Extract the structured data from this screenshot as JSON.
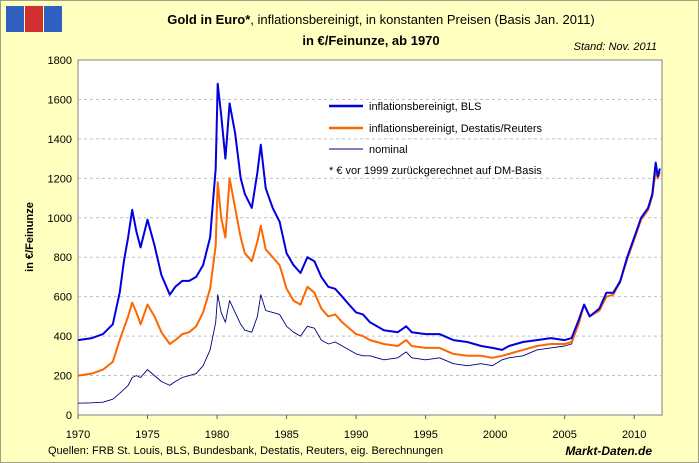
{
  "chart_data": {
    "type": "line",
    "title_bold": "Gold in Euro*",
    "title_rest": ", inflationsbereinigt, in konstanten Preisen (Basis Jan. 2011)",
    "subtitle": "in €/Feinunze, ab 1970",
    "stand": "Stand: Nov. 2011",
    "ylabel": "in €/Feinunze",
    "source": "Quellen: FRB St. Louis, BLS, Bundesbank, Destatis, Reuters, eig. Berechnungen",
    "brand": "Markt-Daten.de",
    "note": "* € vor 1999 zurückgerechnet auf DM-Basis",
    "xlim": [
      1970,
      2012
    ],
    "ylim": [
      0,
      1800
    ],
    "xticks": [
      "1970",
      "1975",
      "1980",
      "1985",
      "1990",
      "1995",
      "2000",
      "2005",
      "2010"
    ],
    "yticks": [
      "0",
      "200",
      "400",
      "600",
      "800",
      "1000",
      "1200",
      "1400",
      "1600",
      "1800"
    ],
    "series": [
      {
        "name": "inflationsbereinigt, BLS",
        "color": "#0000e0",
        "x": [
          1970,
          1971,
          1971.8,
          1972.5,
          1973.0,
          1973.3,
          1973.6,
          1973.9,
          1974.2,
          1974.5,
          1975.0,
          1975.5,
          1976.0,
          1976.6,
          1977.0,
          1977.5,
          1978.0,
          1978.5,
          1979.0,
          1979.5,
          1979.9,
          1980.05,
          1980.3,
          1980.6,
          1980.9,
          1981.3,
          1981.7,
          1982.0,
          1982.5,
          1982.9,
          1983.15,
          1983.5,
          1984.0,
          1984.5,
          1985.0,
          1985.5,
          1986.0,
          1986.5,
          1987.0,
          1987.5,
          1988.0,
          1988.5,
          1989.0,
          1989.5,
          1990.0,
          1990.5,
          1991.0,
          1992.0,
          1993.0,
          1993.6,
          1994.0,
          1995.0,
          1996.0,
          1997.0,
          1998.0,
          1999.0,
          1999.8,
          2000.5,
          2001.0,
          2002.0,
          2003.0,
          2004.0,
          2005.0,
          2005.5,
          2006.0,
          2006.4,
          2006.8,
          2007.5,
          2008.0,
          2008.5,
          2009.0,
          2009.5,
          2010.0,
          2010.5,
          2011.0,
          2011.3,
          2011.55,
          2011.7,
          2011.85
        ],
        "values": [
          380,
          390,
          410,
          460,
          620,
          780,
          900,
          1040,
          930,
          850,
          990,
          860,
          710,
          610,
          650,
          680,
          680,
          700,
          760,
          900,
          1250,
          1680,
          1520,
          1300,
          1580,
          1430,
          1200,
          1120,
          1050,
          1230,
          1370,
          1150,
          1050,
          980,
          820,
          760,
          720,
          800,
          780,
          700,
          650,
          640,
          600,
          560,
          520,
          510,
          470,
          430,
          420,
          450,
          420,
          410,
          410,
          380,
          370,
          350,
          340,
          330,
          350,
          370,
          380,
          390,
          380,
          390,
          480,
          560,
          500,
          540,
          620,
          620,
          680,
          800,
          900,
          1000,
          1050,
          1120,
          1280,
          1210,
          1250
        ]
      },
      {
        "name": "inflationsbereinigt, Destatis/Reuters",
        "color": "#ff6600",
        "x": [
          1970,
          1971,
          1971.8,
          1972.5,
          1973.0,
          1973.3,
          1973.6,
          1973.9,
          1974.2,
          1974.5,
          1975.0,
          1975.5,
          1976.0,
          1976.6,
          1977.0,
          1977.5,
          1978.0,
          1978.5,
          1979.0,
          1979.5,
          1979.9,
          1980.05,
          1980.3,
          1980.6,
          1980.9,
          1981.3,
          1981.7,
          1982.0,
          1982.5,
          1982.9,
          1983.15,
          1983.5,
          1984.0,
          1984.5,
          1985.0,
          1985.5,
          1986.0,
          1986.5,
          1987.0,
          1987.5,
          1988.0,
          1988.5,
          1989.0,
          1989.5,
          1990.0,
          1990.5,
          1991.0,
          1992.0,
          1993.0,
          1993.6,
          1994.0,
          1995.0,
          1996.0,
          1997.0,
          1998.0,
          1999.0,
          1999.8,
          2000.5,
          2001.0,
          2002.0,
          2003.0,
          2004.0,
          2005.0,
          2005.5,
          2006.0,
          2006.4,
          2006.8,
          2007.5,
          2008.0,
          2008.5,
          2009.0,
          2009.5,
          2010.0,
          2010.5,
          2011.0,
          2011.3,
          2011.55,
          2011.7,
          2011.85
        ],
        "values": [
          200,
          210,
          230,
          270,
          380,
          440,
          500,
          570,
          520,
          460,
          560,
          500,
          420,
          360,
          380,
          410,
          420,
          450,
          520,
          640,
          860,
          1180,
          1000,
          900,
          1200,
          1050,
          900,
          820,
          780,
          880,
          960,
          840,
          800,
          760,
          640,
          580,
          560,
          650,
          620,
          540,
          500,
          510,
          470,
          440,
          410,
          400,
          380,
          360,
          350,
          380,
          350,
          340,
          340,
          310,
          300,
          300,
          290,
          300,
          310,
          330,
          350,
          360,
          360,
          370,
          460,
          560,
          500,
          530,
          600,
          610,
          680,
          790,
          890,
          990,
          1040,
          1110,
          1240,
          1200,
          1230
        ]
      },
      {
        "name": "nominal",
        "color": "#000080",
        "x": [
          1970,
          1971,
          1971.8,
          1972.5,
          1973.0,
          1973.3,
          1973.6,
          1973.9,
          1974.2,
          1974.5,
          1975.0,
          1975.5,
          1976.0,
          1976.6,
          1977.0,
          1977.5,
          1978.0,
          1978.5,
          1979.0,
          1979.5,
          1979.9,
          1980.05,
          1980.3,
          1980.6,
          1980.9,
          1981.3,
          1981.7,
          1982.0,
          1982.5,
          1982.9,
          1983.15,
          1983.5,
          1984.0,
          1984.5,
          1985.0,
          1985.5,
          1986.0,
          1986.5,
          1987.0,
          1987.5,
          1988.0,
          1988.5,
          1989.0,
          1989.5,
          1990.0,
          1990.5,
          1991.0,
          1992.0,
          1993.0,
          1993.6,
          1994.0,
          1995.0,
          1996.0,
          1997.0,
          1998.0,
          1999.0,
          1999.8,
          2000.5,
          2001.0,
          2002.0,
          2003.0,
          2004.0,
          2005.0,
          2005.5,
          2006.0,
          2006.4,
          2006.8,
          2007.5,
          2008.0,
          2008.5,
          2009.0,
          2009.5,
          2010.0,
          2010.5,
          2011.0,
          2011.3,
          2011.55,
          2011.7,
          2011.85
        ],
        "values": [
          60,
          62,
          65,
          80,
          110,
          130,
          150,
          190,
          200,
          190,
          230,
          200,
          170,
          150,
          170,
          190,
          200,
          210,
          250,
          330,
          470,
          610,
          520,
          470,
          580,
          520,
          460,
          430,
          420,
          500,
          610,
          530,
          520,
          510,
          450,
          420,
          400,
          450,
          440,
          380,
          360,
          370,
          350,
          330,
          310,
          300,
          300,
          280,
          290,
          320,
          290,
          280,
          290,
          260,
          250,
          260,
          250,
          280,
          290,
          300,
          330,
          340,
          350,
          360,
          460,
          560,
          500,
          530,
          600,
          610,
          670,
          790,
          890,
          990,
          1040,
          1110,
          1260,
          1200,
          1240
        ]
      }
    ]
  }
}
